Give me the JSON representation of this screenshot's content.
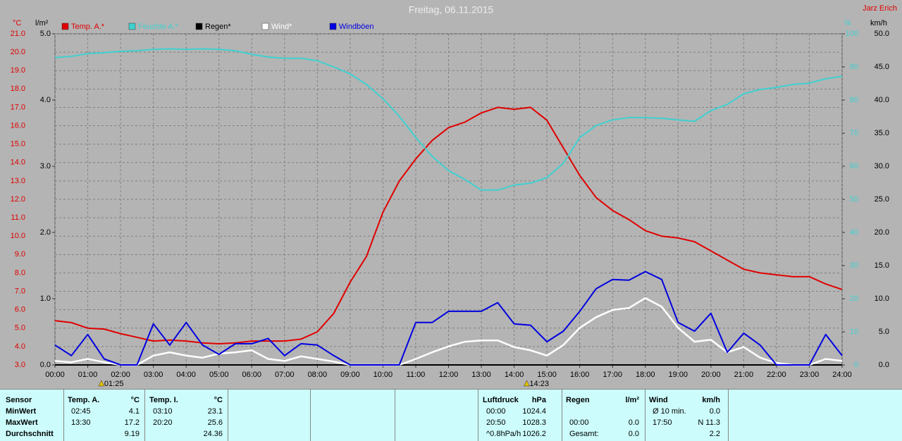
{
  "chart_data": {
    "type": "line",
    "title": "Freitag, 06.11.2015",
    "author": "Jarz Erich",
    "ylabel": "°C",
    "y2label": "l/m²",
    "y3label": "%",
    "y4label": "km/h",
    "x": [
      0,
      0.5,
      1,
      1.5,
      2,
      2.5,
      3,
      3.5,
      4,
      4.5,
      5,
      5.5,
      6,
      6.5,
      7,
      7.5,
      8,
      8.5,
      9,
      9.5,
      10,
      10.5,
      11,
      11.5,
      12,
      12.5,
      13,
      13.5,
      14,
      14.5,
      15,
      15.5,
      16,
      16.5,
      17,
      17.5,
      18,
      18.5,
      19,
      19.5,
      20,
      20.5,
      21,
      21.5,
      22,
      22.5,
      23,
      23.5,
      24
    ],
    "xlim": [
      0,
      24
    ],
    "xticks": [
      {
        "value": 0,
        "label": "00:00"
      },
      {
        "value": 1,
        "label": "01:00"
      },
      {
        "value": 2,
        "label": "02:00"
      },
      {
        "value": 3,
        "label": "03:00"
      },
      {
        "value": 4,
        "label": "04:00"
      },
      {
        "value": 5,
        "label": "05:00"
      },
      {
        "value": 6,
        "label": "06:00"
      },
      {
        "value": 7,
        "label": "07:00"
      },
      {
        "value": 8,
        "label": "08:00"
      },
      {
        "value": 9,
        "label": "09:00"
      },
      {
        "value": 10,
        "label": "10:00"
      },
      {
        "value": 11,
        "label": "11:00"
      },
      {
        "value": 12,
        "label": "12:00"
      },
      {
        "value": 13,
        "label": "13:00"
      },
      {
        "value": 14,
        "label": "14:00"
      },
      {
        "value": 15,
        "label": "15:00"
      },
      {
        "value": 16,
        "label": "16:00"
      },
      {
        "value": 17,
        "label": "17:00"
      },
      {
        "value": 18,
        "label": "18:00"
      },
      {
        "value": 19,
        "label": "19:00"
      },
      {
        "value": 20,
        "label": "20:00"
      },
      {
        "value": 21,
        "label": "21:00"
      },
      {
        "value": 22,
        "label": "22:00"
      },
      {
        "value": 23,
        "label": "23:00"
      },
      {
        "value": 24,
        "label": "24:00"
      }
    ],
    "ylim": [
      3,
      21
    ],
    "yticks": [
      {
        "value": 3,
        "label": "3.0"
      },
      {
        "value": 4,
        "label": "4.0"
      },
      {
        "value": 5,
        "label": "5.0"
      },
      {
        "value": 6,
        "label": "6.0"
      },
      {
        "value": 7,
        "label": "7.0"
      },
      {
        "value": 8,
        "label": "8.0"
      },
      {
        "value": 9,
        "label": "9.0"
      },
      {
        "value": 10,
        "label": "10.0"
      },
      {
        "value": 11,
        "label": "11.0"
      },
      {
        "value": 12,
        "label": "12.0"
      },
      {
        "value": 13,
        "label": "13.0"
      },
      {
        "value": 14,
        "label": "14.0"
      },
      {
        "value": 15,
        "label": "15.0"
      },
      {
        "value": 16,
        "label": "16.0"
      },
      {
        "value": 17,
        "label": "17.0"
      },
      {
        "value": 18,
        "label": "18.0"
      },
      {
        "value": 19,
        "label": "19.0"
      },
      {
        "value": 20,
        "label": "20.0"
      },
      {
        "value": 21,
        "label": "21.0"
      }
    ],
    "y2lim": [
      0,
      5
    ],
    "y2ticks": [
      {
        "value": 0,
        "label": "0.0"
      },
      {
        "value": 1,
        "label": "1.0"
      },
      {
        "value": 2,
        "label": "2.0"
      },
      {
        "value": 3,
        "label": "3.0"
      },
      {
        "value": 4,
        "label": "4.0"
      },
      {
        "value": 5,
        "label": "5.0"
      }
    ],
    "y3lim": [
      0,
      100
    ],
    "y3ticks": [
      0,
      10,
      20,
      30,
      40,
      50,
      60,
      70,
      80,
      90,
      100
    ],
    "y4lim": [
      0,
      50
    ],
    "y4ticks": [
      {
        "value": 0,
        "label": "0.0"
      },
      {
        "value": 5,
        "label": "5.0"
      },
      {
        "value": 10,
        "label": "10.0"
      },
      {
        "value": 15,
        "label": "15.0"
      },
      {
        "value": 20,
        "label": "20.0"
      },
      {
        "value": 25,
        "label": "25.0"
      },
      {
        "value": 30,
        "label": "30.0"
      },
      {
        "value": 35,
        "label": "35.0"
      },
      {
        "value": 40,
        "label": "40.0"
      },
      {
        "value": 45,
        "label": "45.0"
      },
      {
        "value": 50,
        "label": "50.0"
      }
    ],
    "grid": true,
    "series": [
      {
        "name": "Temp. A.*",
        "color": "#e00000",
        "axis": "y",
        "values": [
          5.4,
          5.3,
          5.0,
          4.95,
          4.7,
          4.5,
          4.3,
          4.35,
          4.3,
          4.2,
          4.15,
          4.2,
          4.3,
          4.3,
          4.3,
          4.4,
          4.8,
          5.8,
          7.5,
          8.9,
          11.3,
          13.0,
          14.2,
          15.2,
          15.9,
          16.2,
          16.7,
          17.0,
          16.9,
          17.0,
          16.3,
          14.8,
          13.3,
          12.1,
          11.4,
          10.9,
          10.3,
          10.0,
          9.9,
          9.7,
          9.2,
          8.7,
          8.2,
          8.0,
          7.9,
          7.8,
          7.8,
          7.4,
          7.1
        ]
      },
      {
        "name": "Feuchte A.*",
        "color": "#40d0d0",
        "axis": "y3",
        "values": [
          92.8,
          93.2,
          94,
          94.3,
          94.7,
          94.9,
          95.3,
          95.5,
          95.3,
          95.5,
          95.3,
          94.9,
          93.8,
          93,
          92.6,
          92.6,
          91.9,
          90,
          87.9,
          84.7,
          80.4,
          75.1,
          68.7,
          63,
          58.7,
          56,
          52.8,
          52.8,
          54.3,
          54.9,
          56.6,
          60.9,
          68.7,
          72.3,
          74,
          74.7,
          74.7,
          74.5,
          74,
          73.6,
          76.8,
          78.7,
          81.9,
          83.2,
          83.8,
          84.7,
          85.1,
          86.4,
          87.2
        ]
      },
      {
        "name": "Regen*",
        "color": "#000000",
        "axis": "y2",
        "values": [
          0,
          0,
          0,
          0,
          0,
          0,
          0,
          0,
          0,
          0,
          0,
          0,
          0,
          0,
          0,
          0,
          0,
          0,
          0,
          0,
          0,
          0,
          0,
          0,
          0,
          0,
          0,
          0,
          0,
          0,
          0,
          0,
          0,
          0,
          0,
          0,
          0,
          0,
          0,
          0,
          0,
          0,
          0,
          0,
          0,
          0,
          0,
          0,
          0
        ]
      },
      {
        "name": "Wind*",
        "color": "#ffffff",
        "axis": "y4",
        "values": [
          0.6,
          0.4,
          0.9,
          0.4,
          0,
          0,
          1.4,
          1.9,
          1.4,
          1.1,
          1.7,
          1.9,
          2.2,
          0.9,
          0.6,
          1.3,
          0.9,
          0.5,
          0,
          0,
          0,
          0,
          0.9,
          1.9,
          2.8,
          3.5,
          3.7,
          3.7,
          2.7,
          2.2,
          1.4,
          3,
          5.6,
          7.2,
          8.3,
          8.6,
          10.1,
          8.8,
          5.6,
          3.5,
          3.8,
          1.9,
          2.7,
          1.1,
          0.3,
          0,
          0,
          0.9,
          0.6
        ]
      },
      {
        "name": "Windböen",
        "color": "#0000e0",
        "axis": "y4",
        "values": [
          3.0,
          1.4,
          4.6,
          0.9,
          0,
          0,
          6.2,
          3.0,
          6.4,
          3.0,
          1.6,
          3.2,
          3.2,
          4.0,
          1.4,
          3.2,
          3.0,
          1.4,
          0,
          0,
          0,
          0,
          6.4,
          6.4,
          8.1,
          8.1,
          8.1,
          9.4,
          6.2,
          6.0,
          3.5,
          5.1,
          8.1,
          11.5,
          12.9,
          12.8,
          14.1,
          12.9,
          6.4,
          5.1,
          7.8,
          1.9,
          4.8,
          3.0,
          0,
          0,
          0,
          4.6,
          1.4
        ]
      }
    ],
    "markers": [
      {
        "x": 1.4167,
        "label": "01:25"
      },
      {
        "x": 14.3833,
        "label": "14:23"
      }
    ]
  },
  "stats": {
    "labels": [
      "Sensor",
      "MinWert",
      "MaxWert",
      "Durchschnitt"
    ],
    "sections": [
      {
        "title": "Temp. A.",
        "unit": "°C",
        "rows": [
          [
            "02:45",
            "4.1"
          ],
          [
            "13:30",
            "17.2"
          ],
          [
            "9.19"
          ]
        ]
      },
      {
        "title": "Temp. I.",
        "unit": "°C",
        "rows": [
          [
            "03:10",
            "23.1"
          ],
          [
            "20:20",
            "25.6"
          ],
          [
            "24.36"
          ]
        ]
      },
      {
        "title": "Luftdruck",
        "unit": "hPa",
        "rows": [
          [
            "00:00",
            "1024.4"
          ],
          [
            "20:50",
            "1028.3"
          ],
          [
            "^0.8hPa/h",
            "1026.2"
          ]
        ]
      },
      {
        "title": "Regen",
        "unit": "l/m²",
        "rows": [
          [
            "00:00",
            "0.0"
          ],
          [
            "Gesamt:",
            "0.0"
          ]
        ]
      },
      {
        "title": "Wind",
        "unit": "km/h",
        "rows": [
          [
            "Ø 10 min.",
            "0.0"
          ],
          [
            "17:50",
            "N 11.3"
          ],
          [
            "2.2"
          ]
        ]
      }
    ]
  }
}
